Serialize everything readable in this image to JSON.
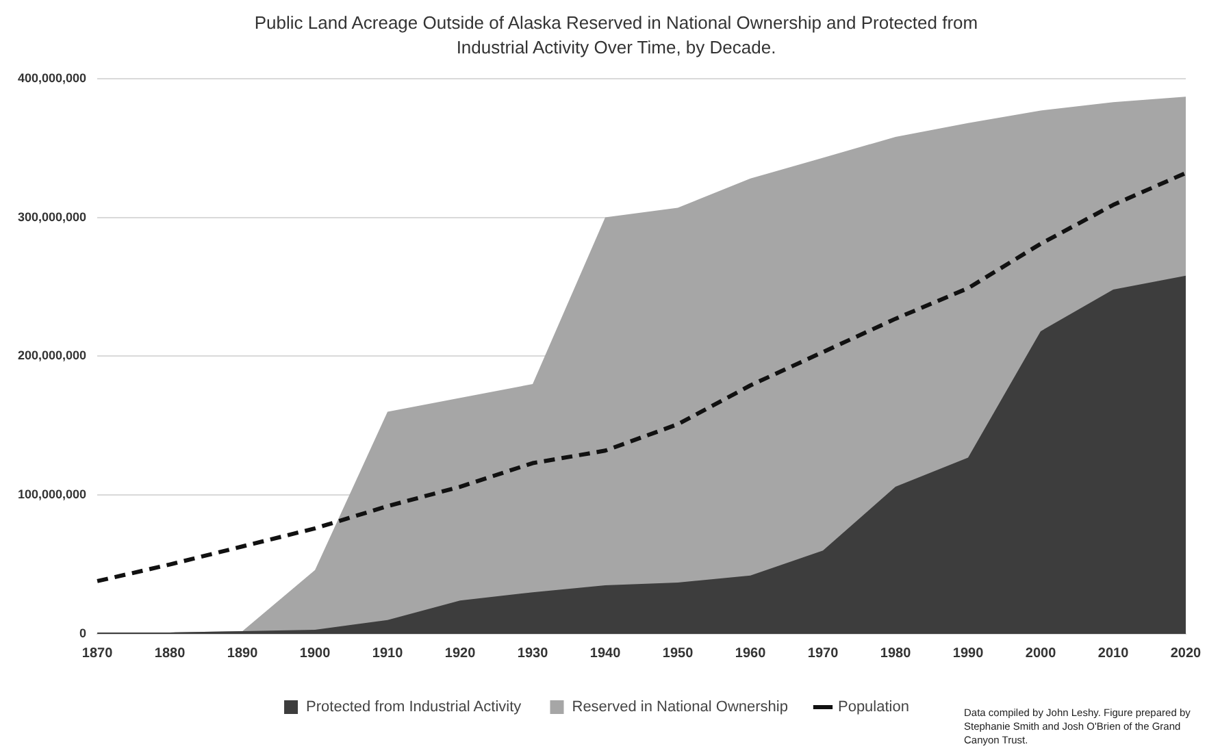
{
  "chart_data": {
    "type": "area",
    "title": "Public Land Acreage Outside of Alaska Reserved in National Ownership and Protected from Industrial Activity Over Time, by Decade.",
    "categories": [
      "1870",
      "1880",
      "1890",
      "1900",
      "1910",
      "1920",
      "1930",
      "1940",
      "1950",
      "1960",
      "1970",
      "1980",
      "1990",
      "2000",
      "2010",
      "2020"
    ],
    "series": [
      {
        "name": "Protected from Industrial Activity",
        "color": "#3d3d3d",
        "values": [
          1000000,
          1000000,
          2000000,
          3000000,
          10000000,
          24000000,
          30000000,
          35000000,
          37000000,
          42000000,
          60000000,
          106000000,
          127000000,
          218000000,
          248000000,
          258000000
        ]
      },
      {
        "name": "Reserved in National Ownership",
        "color": "#a6a6a6",
        "values": [
          1000000,
          1000000,
          2000000,
          46000000,
          160000000,
          170000000,
          180000000,
          300000000,
          307000000,
          328000000,
          343000000,
          358000000,
          368000000,
          377000000,
          383000000,
          387000000
        ]
      },
      {
        "name": "Population",
        "type": "line",
        "color": "#111111",
        "line_style": "dashed",
        "values": [
          38000000,
          50000000,
          63000000,
          76000000,
          92000000,
          106000000,
          123000000,
          132000000,
          151000000,
          179000000,
          203000000,
          227000000,
          249000000,
          281000000,
          309000000,
          332000000
        ]
      }
    ],
    "ylim": [
      0,
      400000000
    ],
    "yticks": [
      {
        "value": 0,
        "label": "0"
      },
      {
        "value": 100000000,
        "label": "100,000,000"
      },
      {
        "value": 200000000,
        "label": "200,000,000"
      },
      {
        "value": 300000000,
        "label": "300,000,000"
      },
      {
        "value": 400000000,
        "label": "400,000,000"
      }
    ],
    "grid": "y",
    "legend": "bottom",
    "annotations": [
      "Data compiled by John Leshy. Figure prepared by Stephanie Smith and Josh O'Brien of the Grand Canyon Trust."
    ]
  }
}
